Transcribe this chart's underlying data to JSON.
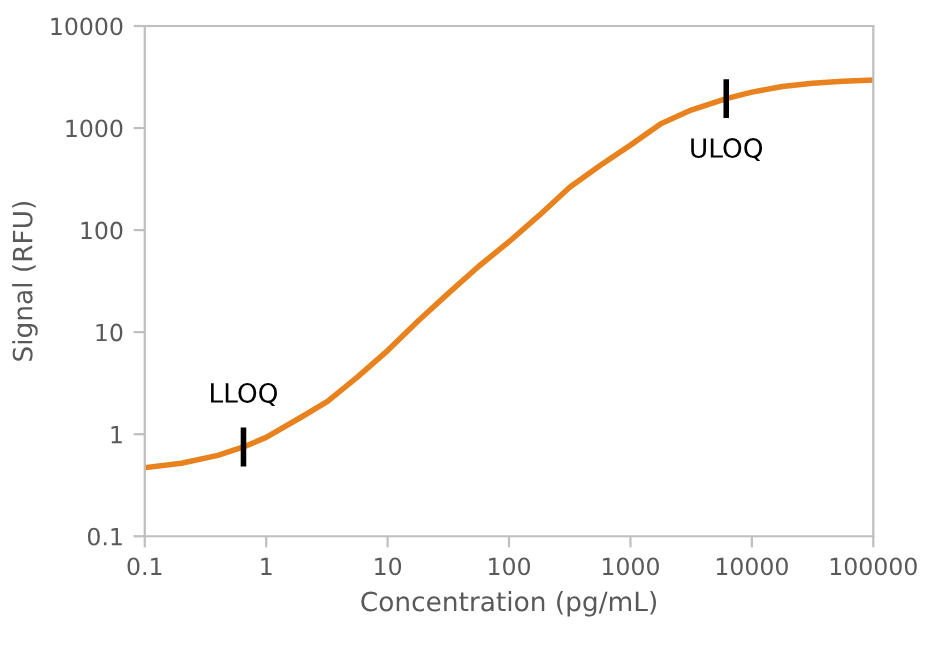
{
  "chart_data": {
    "type": "line",
    "xlabel": "Concentration (pg/mL)",
    "ylabel": "Signal (RFU)",
    "log": "xy",
    "x": [
      0.1,
      0.2,
      0.4,
      0.65,
      1,
      2,
      3.2,
      5.6,
      10,
      18,
      31.6,
      56,
      100,
      178,
      316,
      562,
      1000,
      1780,
      3160,
      6150,
      10000,
      17800,
      31600,
      56200,
      100000
    ],
    "series": [
      {
        "color": "#e8821e",
        "values": [
          0.47,
          0.52,
          0.62,
          0.75,
          0.93,
          1.5,
          2.1,
          3.6,
          6.6,
          13,
          24,
          44,
          77,
          140,
          263,
          430,
          680,
          1100,
          1500,
          1940,
          2250,
          2550,
          2750,
          2880,
          2960
        ]
      }
    ],
    "xlim": [
      0.1,
      100000
    ],
    "xticks": [
      {
        "value": 0.1,
        "label": "0.1"
      },
      {
        "value": 1,
        "label": "1"
      },
      {
        "value": 10,
        "label": "10"
      },
      {
        "value": 100,
        "label": "100"
      },
      {
        "value": 1000,
        "label": "1000"
      },
      {
        "value": 10000,
        "label": "10000"
      },
      {
        "value": 100000,
        "label": "100000"
      }
    ],
    "ylim": [
      0.1,
      10000
    ],
    "yticks": [
      {
        "value": 0.1,
        "label": "0.1"
      },
      {
        "value": 1,
        "label": "1"
      },
      {
        "value": 10,
        "label": "10"
      },
      {
        "value": 100,
        "label": "100"
      },
      {
        "value": 1000,
        "label": "1000"
      },
      {
        "value": 10000,
        "label": "10000"
      }
    ],
    "grid": false,
    "marker": "none",
    "line_style": "solid",
    "annotations": [
      {
        "text": "LLOQ",
        "x": 0.65,
        "y": 0.75
      },
      {
        "text": "ULOQ",
        "x": 6150,
        "y": 1940
      }
    ]
  }
}
